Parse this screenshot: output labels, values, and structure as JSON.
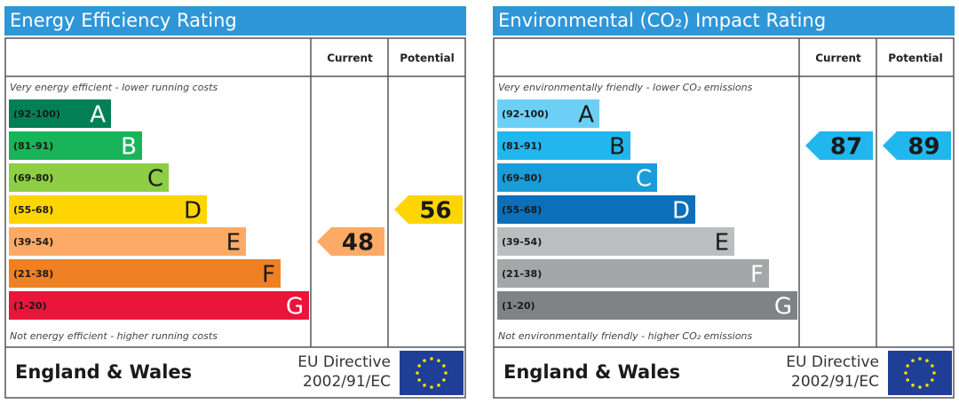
{
  "panels": [
    {
      "title": "Energy Efficiency Rating",
      "columns": [
        "Current",
        "Potential"
      ],
      "top_note": "Very energy efficient - lower running costs",
      "bottom_note": "Not energy efficient - higher running costs",
      "bands": [
        {
          "range": "(92-100)",
          "letter": "A",
          "color": "#008054",
          "letter_color": "#ffffff"
        },
        {
          "range": "(81-91)",
          "letter": "B",
          "color": "#19b459",
          "letter_color": "#ffffff"
        },
        {
          "range": "(69-80)",
          "letter": "C",
          "color": "#8dce46",
          "letter_color": "#1a1a1a"
        },
        {
          "range": "(55-68)",
          "letter": "D",
          "color": "#ffd500",
          "letter_color": "#1a1a1a"
        },
        {
          "range": "(39-54)",
          "letter": "E",
          "color": "#fcaa65",
          "letter_color": "#1a1a1a"
        },
        {
          "range": "(21-38)",
          "letter": "F",
          "color": "#ef8023",
          "letter_color": "#1a1a1a"
        },
        {
          "range": "(1-20)",
          "letter": "G",
          "color": "#e9153b",
          "letter_color": "#ffffff"
        }
      ],
      "current": 48,
      "potential": 56,
      "region": "England & Wales",
      "directive": [
        "EU Directive",
        "2002/91/EC"
      ]
    },
    {
      "title": "Environmental (CO₂) Impact Rating",
      "columns": [
        "Current",
        "Potential"
      ],
      "top_note": "Very environmentally friendly - lower CO₂ emissions",
      "bottom_note": "Not environmentally friendly - higher CO₂ emissions",
      "bands": [
        {
          "range": "(92-100)",
          "letter": "A",
          "color": "#6ccff6",
          "letter_color": "#1a1a1a"
        },
        {
          "range": "(81-91)",
          "letter": "B",
          "color": "#21b6ee",
          "letter_color": "#1a1a1a"
        },
        {
          "range": "(69-80)",
          "letter": "C",
          "color": "#1a9cd9",
          "letter_color": "#ffffff"
        },
        {
          "range": "(55-68)",
          "letter": "D",
          "color": "#0b70b9",
          "letter_color": "#ffffff"
        },
        {
          "range": "(39-54)",
          "letter": "E",
          "color": "#bbbdbf",
          "letter_color": "#1a1a1a"
        },
        {
          "range": "(21-38)",
          "letter": "F",
          "color": "#a4a6a8",
          "letter_color": "#ffffff"
        },
        {
          "range": "(1-20)",
          "letter": "G",
          "color": "#808285",
          "letter_color": "#ffffff"
        }
      ],
      "current": 87,
      "potential": 89,
      "region": "England & Wales",
      "directive": [
        "EU Directive",
        "2002/91/EC"
      ]
    }
  ]
}
